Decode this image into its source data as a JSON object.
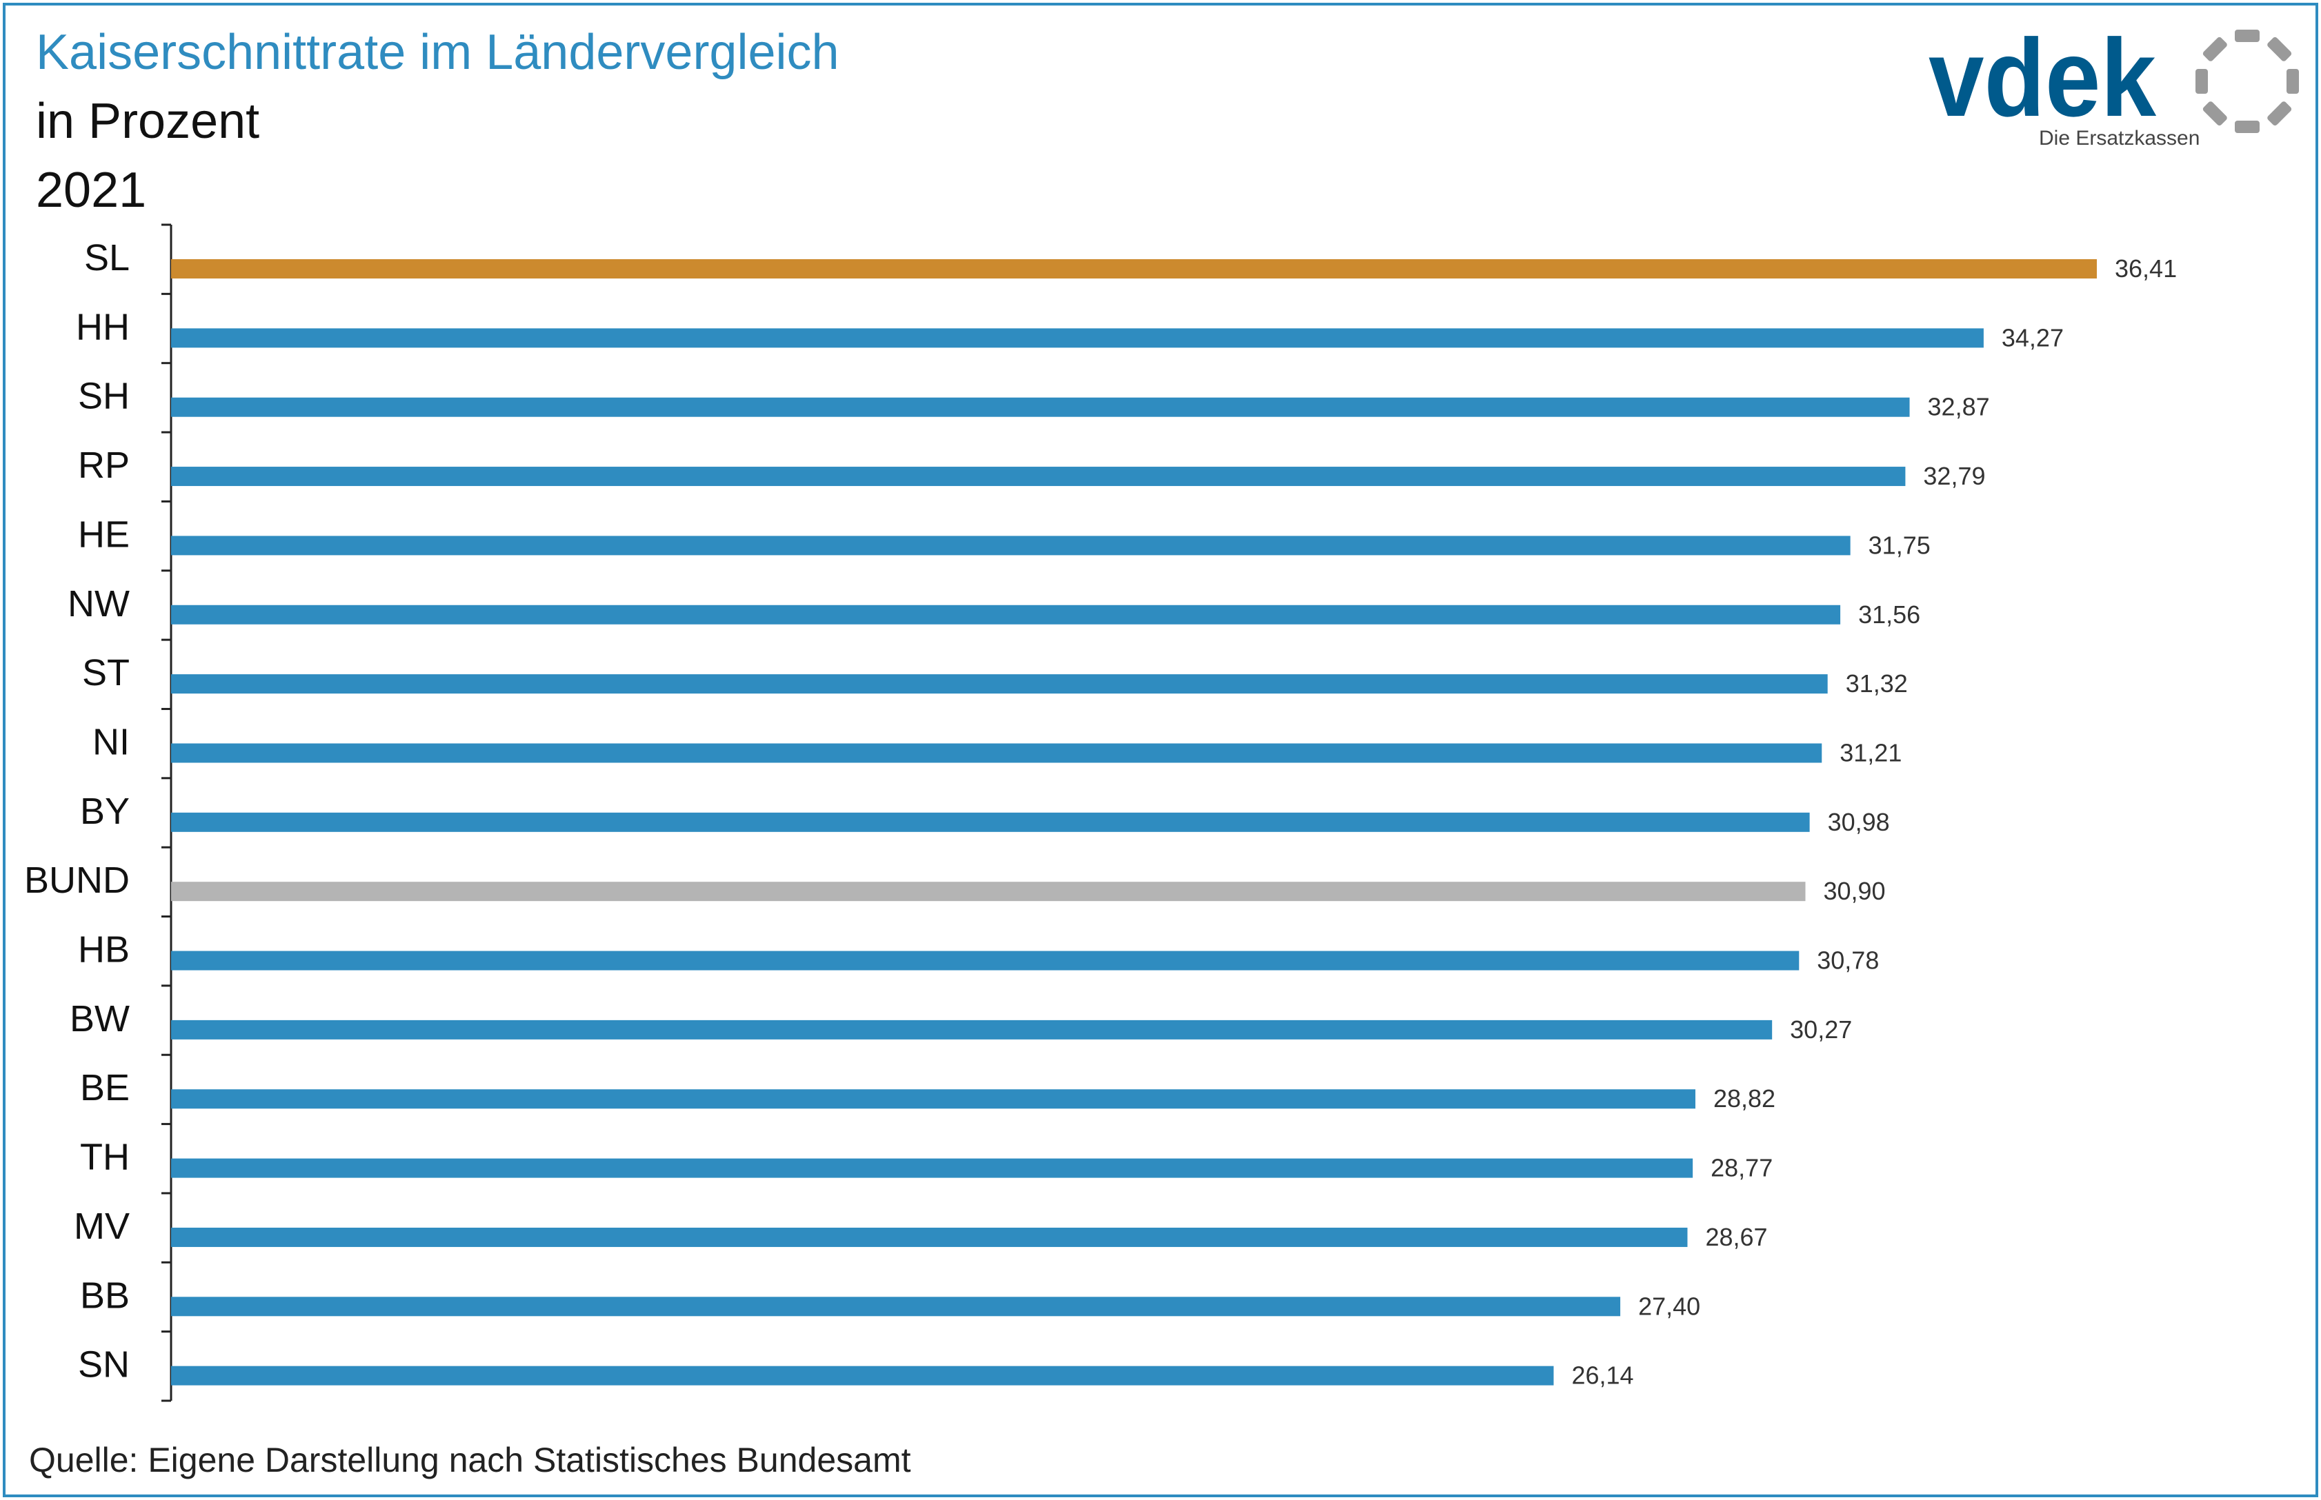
{
  "header": {
    "title": "Kaiserschnittrate im Ländervergleich",
    "subtitle": "in Prozent",
    "year": "2021"
  },
  "logo": {
    "wordmark": "vdek",
    "tagline": "Die Ersatzkassen",
    "brand_color": "#005a8c",
    "ring_color": "#9a9a9a"
  },
  "footer": {
    "source": "Quelle: Eigene Darstellung nach Statistisches Bundesamt"
  },
  "colors": {
    "default_bar": "#2f8cc0",
    "highlight_bar": "#cc8a2e",
    "national_bar": "#b4b4b4",
    "frame": "#2f8cc0"
  },
  "chart_data": {
    "type": "bar",
    "orientation": "horizontal",
    "categories": [
      "SL",
      "HH",
      "SH",
      "RP",
      "HE",
      "NW",
      "ST",
      "NI",
      "BY",
      "BUND",
      "HB",
      "BW",
      "BE",
      "TH",
      "MV",
      "BB",
      "SN"
    ],
    "values": [
      36.41,
      34.27,
      32.87,
      32.79,
      31.75,
      31.56,
      31.32,
      31.21,
      30.98,
      30.9,
      30.78,
      30.27,
      28.82,
      28.77,
      28.67,
      27.4,
      26.14
    ],
    "value_labels": [
      "36,41",
      "34,27",
      "32,87",
      "32,79",
      "31,75",
      "31,56",
      "31,32",
      "31,21",
      "30,98",
      "30,90",
      "30,78",
      "30,27",
      "28,82",
      "28,77",
      "28,67",
      "27,40",
      "26,14"
    ],
    "highlight": {
      "SL": "highlight_bar",
      "BUND": "national_bar"
    },
    "xlim": [
      0,
      36.41
    ],
    "title": "Kaiserschnittrate im Ländervergleich",
    "xlabel": "",
    "ylabel": "",
    "grid": false,
    "legend": "none"
  }
}
